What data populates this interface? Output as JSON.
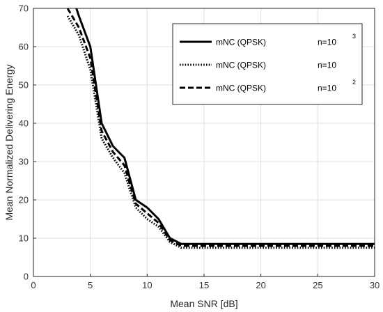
{
  "chart_data": {
    "type": "line",
    "title": "",
    "xlabel": "Mean SNR [dB]",
    "ylabel": "Mean Normalized Delivering Energy",
    "xlim": [
      0,
      30
    ],
    "ylim": [
      0,
      70
    ],
    "xticks": [
      0,
      5,
      10,
      15,
      20,
      25,
      30
    ],
    "yticks": [
      0,
      10,
      20,
      30,
      40,
      50,
      60,
      70
    ],
    "grid": true,
    "legend_position": "top-right",
    "series": [
      {
        "name": "mNC (QPSK)",
        "n_label": "n=10",
        "n_exp": "3",
        "style": "solid",
        "x": [
          3,
          4,
          5,
          6,
          7,
          8,
          9,
          10,
          11,
          12,
          13,
          14,
          15,
          20,
          25,
          30
        ],
        "y": [
          77,
          68,
          60,
          40,
          34,
          31,
          20,
          18,
          15,
          10,
          8.5,
          8.5,
          8.5,
          8.5,
          8.5,
          8.5
        ]
      },
      {
        "name": "mNC (QPSK)",
        "n_label": "n=10",
        "n_exp": "",
        "style": "dotted",
        "x": [
          3,
          4,
          5,
          6,
          7,
          8,
          9,
          10,
          11,
          12,
          13,
          14,
          15,
          20,
          25,
          30
        ],
        "y": [
          68,
          63,
          54,
          36,
          31,
          27,
          18,
          15,
          13,
          9,
          7.5,
          7.5,
          7.5,
          7.5,
          7.5,
          7.5
        ]
      },
      {
        "name": "mNC (QPSK)",
        "n_label": "n=10",
        "n_exp": "2",
        "style": "dashed",
        "x": [
          3,
          4,
          5,
          6,
          7,
          8,
          9,
          10,
          11,
          12,
          13,
          14,
          15,
          20,
          25,
          30
        ],
        "y": [
          70,
          65,
          57,
          38,
          32.5,
          29,
          19,
          16.5,
          14,
          9.5,
          8,
          8,
          8,
          8,
          8,
          8
        ]
      }
    ]
  },
  "colors": {
    "line": "#000000",
    "grid": "#dfdfdf",
    "axis": "#262626"
  }
}
